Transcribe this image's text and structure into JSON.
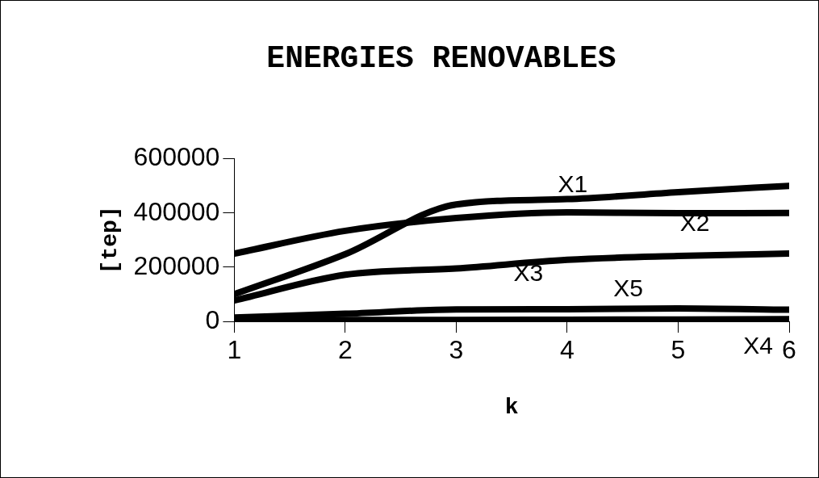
{
  "chart_data": {
    "type": "line",
    "title": "ENERGIES RENOVABLES",
    "xlabel": "k",
    "ylabel": "[tep]",
    "x": [
      1,
      2,
      3,
      4,
      5,
      6
    ],
    "xlim": [
      1,
      6
    ],
    "xticks": [
      1,
      2,
      3,
      4,
      5,
      6
    ],
    "ylim": [
      0,
      600000
    ],
    "yticks": [
      0,
      200000,
      400000,
      600000
    ],
    "legend": false,
    "marker": "none",
    "line_style": "solid",
    "series": [
      {
        "name": "X1",
        "color": "#000000",
        "values": [
          100000,
          248000,
          431000,
          451000,
          477000,
          500000
        ]
      },
      {
        "name": "X2",
        "color": "#000000",
        "values": [
          250000,
          334000,
          381000,
          402000,
          399000,
          400000
        ]
      },
      {
        "name": "X3",
        "color": "#000000",
        "values": [
          77000,
          172000,
          195000,
          227000,
          241000,
          250000
        ]
      },
      {
        "name": "X4",
        "color": "#000000",
        "values": [
          5000,
          5000,
          5000,
          6000,
          7000,
          8000
        ]
      },
      {
        "name": "X5",
        "color": "#000000",
        "values": [
          14000,
          28000,
          44000,
          45000,
          48000,
          43000
        ]
      }
    ]
  }
}
